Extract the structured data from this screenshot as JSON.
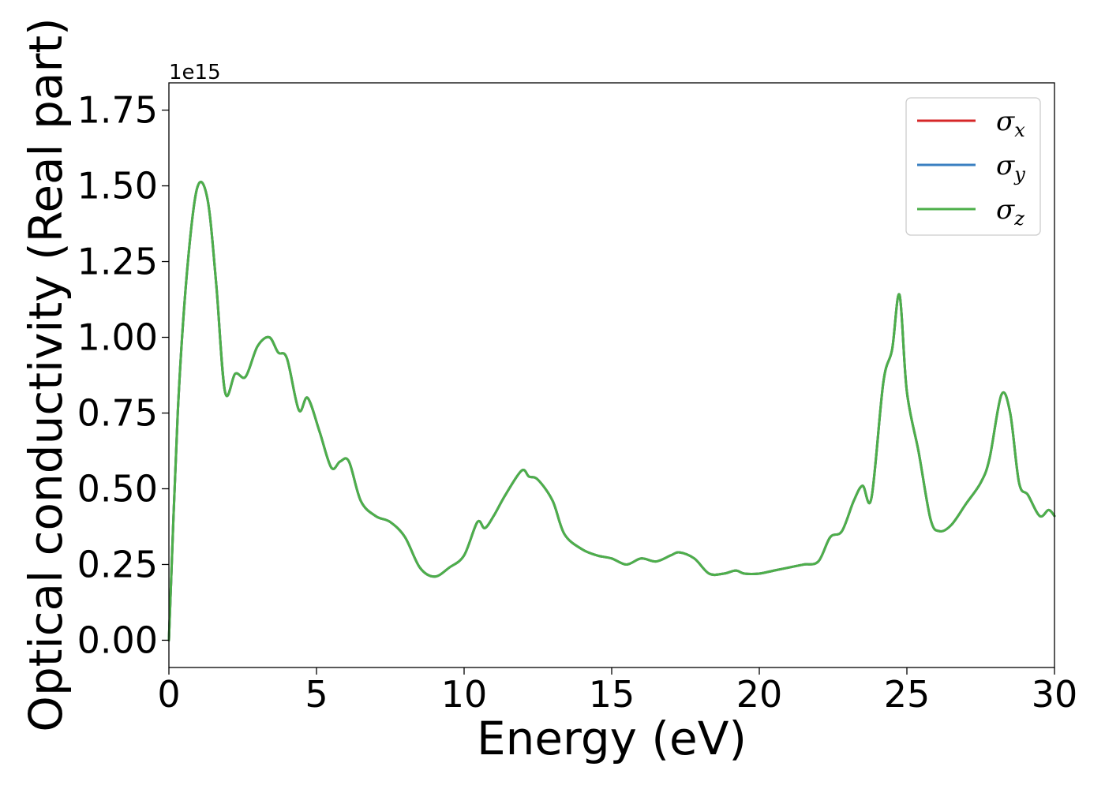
{
  "chart_data": {
    "type": "line",
    "title": "",
    "xlabel": "Energy (eV)",
    "ylabel": "Optical conductivity (Real part)",
    "y_offset_label": "1e15",
    "xlim": [
      0,
      30
    ],
    "ylim": [
      -0.09,
      1.84
    ],
    "x_ticks": [
      0,
      5,
      10,
      15,
      20,
      25,
      30
    ],
    "x_tick_labels": [
      "0",
      "5",
      "10",
      "15",
      "20",
      "25",
      "30"
    ],
    "y_ticks": [
      0.0,
      0.25,
      0.5,
      0.75,
      1.0,
      1.25,
      1.5,
      1.75
    ],
    "y_tick_labels": [
      "0.00",
      "0.25",
      "0.50",
      "0.75",
      "1.00",
      "1.25",
      "1.50",
      "1.75"
    ],
    "grid": false,
    "legend_position": "top-right",
    "x": [
      0,
      0.3,
      0.6,
      0.95,
      1.3,
      1.6,
      1.9,
      2.25,
      2.6,
      3.0,
      3.4,
      3.7,
      4.0,
      4.4,
      4.7,
      5.1,
      5.5,
      5.8,
      6.1,
      6.5,
      7.0,
      7.5,
      8.0,
      8.5,
      9.0,
      9.5,
      10.0,
      10.45,
      10.7,
      11.0,
      11.4,
      11.95,
      12.2,
      12.5,
      13.0,
      13.4,
      14.0,
      14.5,
      15.0,
      15.5,
      16.0,
      16.5,
      17.0,
      17.3,
      17.8,
      18.3,
      18.8,
      19.2,
      19.5,
      20.0,
      20.5,
      21.0,
      21.5,
      22.0,
      22.4,
      22.8,
      23.2,
      23.5,
      23.8,
      24.2,
      24.5,
      24.75,
      25.0,
      25.4,
      25.8,
      26.1,
      26.5,
      27.0,
      27.5,
      27.8,
      28.2,
      28.5,
      28.8,
      29.1,
      29.5,
      29.8,
      30.0
    ],
    "series": [
      {
        "name": "σ_x",
        "values": [
          0.0,
          0.75,
          1.2,
          1.49,
          1.46,
          1.18,
          0.82,
          0.88,
          0.87,
          0.97,
          1.0,
          0.95,
          0.93,
          0.76,
          0.8,
          0.69,
          0.57,
          0.59,
          0.59,
          0.46,
          0.41,
          0.39,
          0.34,
          0.24,
          0.21,
          0.24,
          0.28,
          0.39,
          0.37,
          0.41,
          0.48,
          0.56,
          0.54,
          0.53,
          0.46,
          0.35,
          0.3,
          0.28,
          0.27,
          0.25,
          0.27,
          0.26,
          0.28,
          0.29,
          0.27,
          0.22,
          0.22,
          0.23,
          0.22,
          0.22,
          0.23,
          0.24,
          0.25,
          0.26,
          0.34,
          0.36,
          0.46,
          0.51,
          0.47,
          0.85,
          0.96,
          1.14,
          0.82,
          0.62,
          0.4,
          0.36,
          0.38,
          0.45,
          0.52,
          0.6,
          0.81,
          0.75,
          0.52,
          0.48,
          0.41,
          0.43,
          0.41
        ]
      },
      {
        "name": "σ_y",
        "values": [
          0.0,
          0.75,
          1.2,
          1.49,
          1.46,
          1.18,
          0.82,
          0.88,
          0.87,
          0.97,
          1.0,
          0.95,
          0.93,
          0.76,
          0.8,
          0.69,
          0.57,
          0.59,
          0.59,
          0.46,
          0.41,
          0.39,
          0.34,
          0.24,
          0.21,
          0.24,
          0.28,
          0.39,
          0.37,
          0.41,
          0.48,
          0.56,
          0.54,
          0.53,
          0.46,
          0.35,
          0.3,
          0.28,
          0.27,
          0.25,
          0.27,
          0.26,
          0.28,
          0.29,
          0.27,
          0.22,
          0.22,
          0.23,
          0.22,
          0.22,
          0.23,
          0.24,
          0.25,
          0.26,
          0.34,
          0.36,
          0.46,
          0.51,
          0.47,
          0.85,
          0.96,
          1.14,
          0.82,
          0.62,
          0.4,
          0.36,
          0.38,
          0.45,
          0.52,
          0.6,
          0.81,
          0.75,
          0.52,
          0.48,
          0.41,
          0.43,
          0.41
        ]
      },
      {
        "name": "σ_z",
        "values": [
          0.0,
          0.75,
          1.2,
          1.49,
          1.46,
          1.18,
          0.82,
          0.88,
          0.87,
          0.97,
          1.0,
          0.95,
          0.93,
          0.76,
          0.8,
          0.69,
          0.57,
          0.59,
          0.59,
          0.46,
          0.41,
          0.39,
          0.34,
          0.24,
          0.21,
          0.24,
          0.28,
          0.39,
          0.37,
          0.41,
          0.48,
          0.56,
          0.54,
          0.53,
          0.46,
          0.35,
          0.3,
          0.28,
          0.27,
          0.25,
          0.27,
          0.26,
          0.28,
          0.29,
          0.27,
          0.22,
          0.22,
          0.23,
          0.22,
          0.22,
          0.23,
          0.24,
          0.25,
          0.26,
          0.34,
          0.36,
          0.46,
          0.51,
          0.47,
          0.85,
          0.96,
          1.14,
          0.82,
          0.62,
          0.4,
          0.36,
          0.38,
          0.45,
          0.52,
          0.6,
          0.81,
          0.75,
          0.52,
          0.48,
          0.41,
          0.43,
          0.41
        ]
      }
    ],
    "legend": [
      {
        "symbol": "σ",
        "subscript": "x",
        "color": "#d62728"
      },
      {
        "symbol": "σ",
        "subscript": "y",
        "color": "#3a7fc1"
      },
      {
        "symbol": "σ",
        "subscript": "z",
        "color": "#4daf4a"
      }
    ]
  }
}
